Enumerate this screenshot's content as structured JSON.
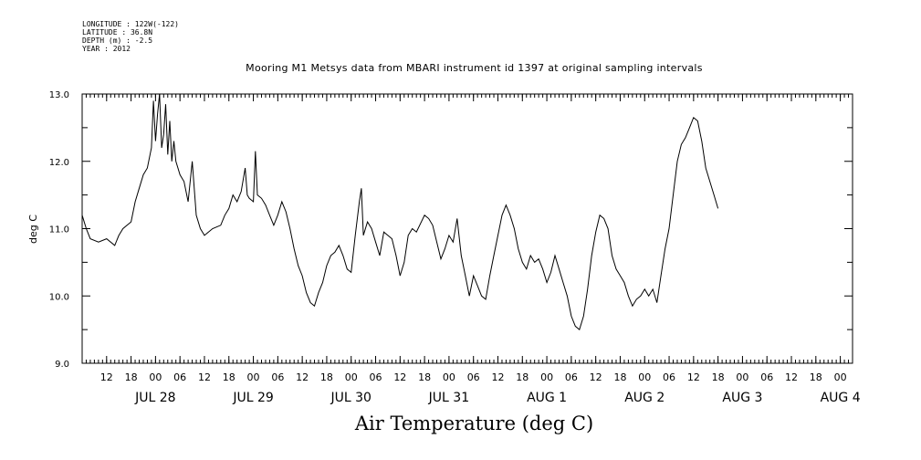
{
  "header": {
    "longitude": "LONGITUDE : 122W(-122)",
    "latitude": "LATITUDE : 36.8N",
    "depth": "DEPTH (m) : -2.5",
    "year": "YEAR : 2012"
  },
  "chart_data": {
    "type": "line",
    "title": "Mooring M1 Metsys data from MBARI instrument id 1397 at original sampling intervals",
    "subtitle": "Air Temperature (deg C)",
    "ylabel": "deg C",
    "ylim": [
      9.0,
      13.0
    ],
    "yticks": [
      "9.0",
      "10.0",
      "11.0",
      "12.0",
      "13.0"
    ],
    "xlim": [
      "2012-07-27T06:00",
      "2012-08-04T03:00"
    ],
    "hour_ticks": [
      {
        "t": "2012-07-27T12:00",
        "label": "12"
      },
      {
        "t": "2012-07-27T18:00",
        "label": "18"
      },
      {
        "t": "2012-07-28T00:00",
        "label": "00"
      },
      {
        "t": "2012-07-28T06:00",
        "label": "06"
      },
      {
        "t": "2012-07-28T12:00",
        "label": "12"
      },
      {
        "t": "2012-07-28T18:00",
        "label": "18"
      },
      {
        "t": "2012-07-29T00:00",
        "label": "00"
      },
      {
        "t": "2012-07-29T06:00",
        "label": "06"
      },
      {
        "t": "2012-07-29T12:00",
        "label": "12"
      },
      {
        "t": "2012-07-29T18:00",
        "label": "18"
      },
      {
        "t": "2012-07-30T00:00",
        "label": "00"
      },
      {
        "t": "2012-07-30T06:00",
        "label": "06"
      },
      {
        "t": "2012-07-30T12:00",
        "label": "12"
      },
      {
        "t": "2012-07-30T18:00",
        "label": "18"
      },
      {
        "t": "2012-07-31T00:00",
        "label": "00"
      },
      {
        "t": "2012-07-31T06:00",
        "label": "06"
      },
      {
        "t": "2012-07-31T12:00",
        "label": "12"
      },
      {
        "t": "2012-07-31T18:00",
        "label": "18"
      },
      {
        "t": "2012-08-01T00:00",
        "label": "00"
      },
      {
        "t": "2012-08-01T06:00",
        "label": "06"
      },
      {
        "t": "2012-08-01T12:00",
        "label": "12"
      },
      {
        "t": "2012-08-01T18:00",
        "label": "18"
      },
      {
        "t": "2012-08-02T00:00",
        "label": "00"
      },
      {
        "t": "2012-08-02T06:00",
        "label": "06"
      },
      {
        "t": "2012-08-02T12:00",
        "label": "12"
      },
      {
        "t": "2012-08-02T18:00",
        "label": "18"
      },
      {
        "t": "2012-08-03T00:00",
        "label": "00"
      },
      {
        "t": "2012-08-03T06:00",
        "label": "06"
      },
      {
        "t": "2012-08-03T12:00",
        "label": "12"
      },
      {
        "t": "2012-08-03T18:00",
        "label": "18"
      },
      {
        "t": "2012-08-04T00:00",
        "label": "00"
      }
    ],
    "day_labels": [
      {
        "t": "2012-07-28T00:00",
        "label": "JUL 28"
      },
      {
        "t": "2012-07-29T00:00",
        "label": "JUL 29"
      },
      {
        "t": "2012-07-30T00:00",
        "label": "JUL 30"
      },
      {
        "t": "2012-07-31T00:00",
        "label": "JUL 31"
      },
      {
        "t": "2012-08-01T00:00",
        "label": "AUG  1"
      },
      {
        "t": "2012-08-02T00:00",
        "label": "AUG  2"
      },
      {
        "t": "2012-08-03T00:00",
        "label": "AUG  3"
      },
      {
        "t": "2012-08-04T00:00",
        "label": "AUG  4"
      }
    ],
    "series": [
      {
        "values": [
          [
            "2012-07-27T06:00",
            11.2
          ],
          [
            "2012-07-27T07:00",
            11.0
          ],
          [
            "2012-07-27T08:00",
            10.85
          ],
          [
            "2012-07-27T10:00",
            10.8
          ],
          [
            "2012-07-27T12:00",
            10.85
          ],
          [
            "2012-07-27T14:00",
            10.75
          ],
          [
            "2012-07-27T15:00",
            10.9
          ],
          [
            "2012-07-27T16:00",
            11.0
          ],
          [
            "2012-07-27T18:00",
            11.1
          ],
          [
            "2012-07-27T19:00",
            11.4
          ],
          [
            "2012-07-27T20:00",
            11.6
          ],
          [
            "2012-07-27T21:00",
            11.8
          ],
          [
            "2012-07-27T22:00",
            11.9
          ],
          [
            "2012-07-27T23:00",
            12.2
          ],
          [
            "2012-07-27T23:30",
            12.9
          ],
          [
            "2012-07-28T00:00",
            12.3
          ],
          [
            "2012-07-28T00:30",
            12.7
          ],
          [
            "2012-07-28T01:00",
            13.0
          ],
          [
            "2012-07-28T01:30",
            12.2
          ],
          [
            "2012-07-28T02:00",
            12.4
          ],
          [
            "2012-07-28T02:30",
            12.85
          ],
          [
            "2012-07-28T03:00",
            12.1
          ],
          [
            "2012-07-28T03:30",
            12.6
          ],
          [
            "2012-07-28T04:00",
            12.0
          ],
          [
            "2012-07-28T04:30",
            12.3
          ],
          [
            "2012-07-28T05:00",
            12.0
          ],
          [
            "2012-07-28T06:00",
            11.8
          ],
          [
            "2012-07-28T07:00",
            11.7
          ],
          [
            "2012-07-28T08:00",
            11.4
          ],
          [
            "2012-07-28T09:00",
            12.0
          ],
          [
            "2012-07-28T10:00",
            11.2
          ],
          [
            "2012-07-28T11:00",
            11.0
          ],
          [
            "2012-07-28T12:00",
            10.9
          ],
          [
            "2012-07-28T14:00",
            11.0
          ],
          [
            "2012-07-28T16:00",
            11.05
          ],
          [
            "2012-07-28T17:00",
            11.2
          ],
          [
            "2012-07-28T18:00",
            11.3
          ],
          [
            "2012-07-28T19:00",
            11.5
          ],
          [
            "2012-07-28T20:00",
            11.4
          ],
          [
            "2012-07-28T21:00",
            11.55
          ],
          [
            "2012-07-28T22:00",
            11.9
          ],
          [
            "2012-07-28T22:30",
            11.5
          ],
          [
            "2012-07-28T23:00",
            11.45
          ],
          [
            "2012-07-29T00:00",
            11.4
          ],
          [
            "2012-07-29T00:30",
            12.15
          ],
          [
            "2012-07-29T01:00",
            11.5
          ],
          [
            "2012-07-29T02:00",
            11.45
          ],
          [
            "2012-07-29T03:00",
            11.35
          ],
          [
            "2012-07-29T04:00",
            11.2
          ],
          [
            "2012-07-29T05:00",
            11.05
          ],
          [
            "2012-07-29T06:00",
            11.2
          ],
          [
            "2012-07-29T07:00",
            11.4
          ],
          [
            "2012-07-29T08:00",
            11.25
          ],
          [
            "2012-07-29T09:00",
            11.0
          ],
          [
            "2012-07-29T10:00",
            10.7
          ],
          [
            "2012-07-29T11:00",
            10.45
          ],
          [
            "2012-07-29T12:00",
            10.3
          ],
          [
            "2012-07-29T13:00",
            10.05
          ],
          [
            "2012-07-29T14:00",
            9.9
          ],
          [
            "2012-07-29T15:00",
            9.85
          ],
          [
            "2012-07-29T16:00",
            10.05
          ],
          [
            "2012-07-29T17:00",
            10.2
          ],
          [
            "2012-07-29T18:00",
            10.45
          ],
          [
            "2012-07-29T19:00",
            10.6
          ],
          [
            "2012-07-29T20:00",
            10.65
          ],
          [
            "2012-07-29T21:00",
            10.75
          ],
          [
            "2012-07-29T22:00",
            10.6
          ],
          [
            "2012-07-29T23:00",
            10.4
          ],
          [
            "2012-07-30T00:00",
            10.35
          ],
          [
            "2012-07-30T01:00",
            10.9
          ],
          [
            "2012-07-30T02:00",
            11.4
          ],
          [
            "2012-07-30T02:30",
            11.6
          ],
          [
            "2012-07-30T03:00",
            10.9
          ],
          [
            "2012-07-30T04:00",
            11.1
          ],
          [
            "2012-07-30T05:00",
            11.0
          ],
          [
            "2012-07-30T06:00",
            10.8
          ],
          [
            "2012-07-30T07:00",
            10.6
          ],
          [
            "2012-07-30T08:00",
            10.95
          ],
          [
            "2012-07-30T09:00",
            10.9
          ],
          [
            "2012-07-30T10:00",
            10.85
          ],
          [
            "2012-07-30T11:00",
            10.6
          ],
          [
            "2012-07-30T12:00",
            10.3
          ],
          [
            "2012-07-30T13:00",
            10.5
          ],
          [
            "2012-07-30T14:00",
            10.9
          ],
          [
            "2012-07-30T15:00",
            11.0
          ],
          [
            "2012-07-30T16:00",
            10.95
          ],
          [
            "2012-07-30T18:00",
            11.2
          ],
          [
            "2012-07-30T19:00",
            11.15
          ],
          [
            "2012-07-30T20:00",
            11.05
          ],
          [
            "2012-07-30T21:00",
            10.8
          ],
          [
            "2012-07-30T22:00",
            10.55
          ],
          [
            "2012-07-30T23:00",
            10.7
          ],
          [
            "2012-07-31T00:00",
            10.9
          ],
          [
            "2012-07-31T01:00",
            10.8
          ],
          [
            "2012-07-31T02:00",
            11.15
          ],
          [
            "2012-07-31T03:00",
            10.6
          ],
          [
            "2012-07-31T04:00",
            10.3
          ],
          [
            "2012-07-31T05:00",
            10.0
          ],
          [
            "2012-07-31T06:00",
            10.3
          ],
          [
            "2012-07-31T07:00",
            10.15
          ],
          [
            "2012-07-31T08:00",
            10.0
          ],
          [
            "2012-07-31T09:00",
            9.95
          ],
          [
            "2012-07-31T10:00",
            10.3
          ],
          [
            "2012-07-31T11:00",
            10.6
          ],
          [
            "2012-07-31T12:00",
            10.9
          ],
          [
            "2012-07-31T13:00",
            11.2
          ],
          [
            "2012-07-31T14:00",
            11.35
          ],
          [
            "2012-07-31T15:00",
            11.2
          ],
          [
            "2012-07-31T16:00",
            11.0
          ],
          [
            "2012-07-31T17:00",
            10.7
          ],
          [
            "2012-07-31T18:00",
            10.5
          ],
          [
            "2012-07-31T19:00",
            10.4
          ],
          [
            "2012-07-31T20:00",
            10.6
          ],
          [
            "2012-07-31T21:00",
            10.5
          ],
          [
            "2012-07-31T22:00",
            10.55
          ],
          [
            "2012-07-31T23:00",
            10.4
          ],
          [
            "2012-08-01T00:00",
            10.2
          ],
          [
            "2012-08-01T01:00",
            10.35
          ],
          [
            "2012-08-01T02:00",
            10.6
          ],
          [
            "2012-08-01T03:00",
            10.4
          ],
          [
            "2012-08-01T04:00",
            10.2
          ],
          [
            "2012-08-01T05:00",
            10.0
          ],
          [
            "2012-08-01T06:00",
            9.7
          ],
          [
            "2012-08-01T07:00",
            9.55
          ],
          [
            "2012-08-01T08:00",
            9.5
          ],
          [
            "2012-08-01T09:00",
            9.7
          ],
          [
            "2012-08-01T10:00",
            10.1
          ],
          [
            "2012-08-01T11:00",
            10.6
          ],
          [
            "2012-08-01T12:00",
            10.95
          ],
          [
            "2012-08-01T13:00",
            11.2
          ],
          [
            "2012-08-01T14:00",
            11.15
          ],
          [
            "2012-08-01T15:00",
            11.0
          ],
          [
            "2012-08-01T16:00",
            10.6
          ],
          [
            "2012-08-01T17:00",
            10.4
          ],
          [
            "2012-08-01T18:00",
            10.3
          ],
          [
            "2012-08-01T19:00",
            10.2
          ],
          [
            "2012-08-01T20:00",
            10.0
          ],
          [
            "2012-08-01T21:00",
            9.85
          ],
          [
            "2012-08-01T22:00",
            9.95
          ],
          [
            "2012-08-01T23:00",
            10.0
          ],
          [
            "2012-08-02T00:00",
            10.1
          ],
          [
            "2012-08-02T01:00",
            10.0
          ],
          [
            "2012-08-02T02:00",
            10.1
          ],
          [
            "2012-08-02T03:00",
            9.9
          ],
          [
            "2012-08-02T04:00",
            10.3
          ],
          [
            "2012-08-02T05:00",
            10.7
          ],
          [
            "2012-08-02T06:00",
            11.0
          ],
          [
            "2012-08-02T07:00",
            11.5
          ],
          [
            "2012-08-02T08:00",
            12.0
          ],
          [
            "2012-08-02T09:00",
            12.25
          ],
          [
            "2012-08-02T10:00",
            12.35
          ],
          [
            "2012-08-02T11:00",
            12.5
          ],
          [
            "2012-08-02T12:00",
            12.65
          ],
          [
            "2012-08-02T13:00",
            12.6
          ],
          [
            "2012-08-02T14:00",
            12.3
          ],
          [
            "2012-08-02T15:00",
            11.9
          ],
          [
            "2012-08-02T16:00",
            11.7
          ],
          [
            "2012-08-02T17:00",
            11.5
          ],
          [
            "2012-08-02T18:00",
            11.3
          ]
        ]
      }
    ]
  }
}
